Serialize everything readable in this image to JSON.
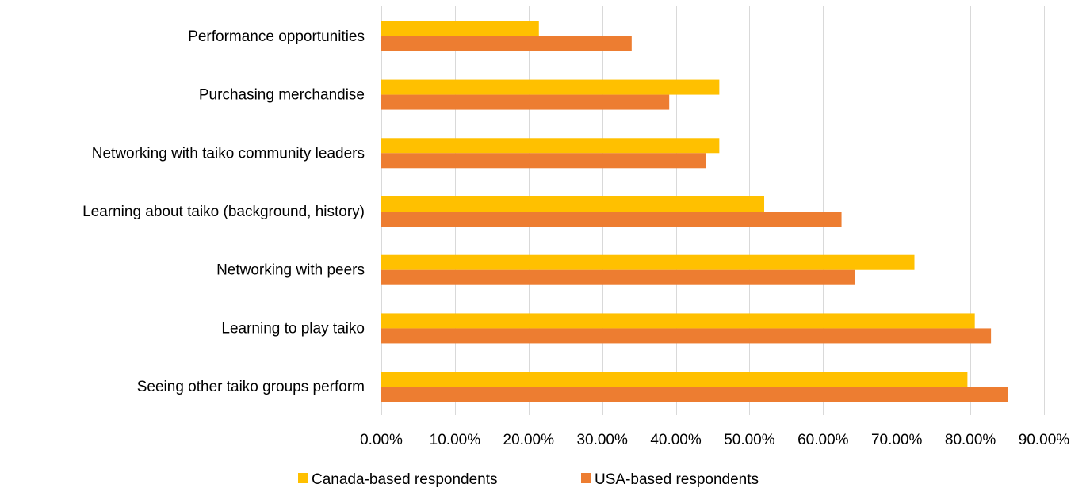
{
  "chart_data": {
    "type": "bar",
    "orientation": "horizontal",
    "categories": [
      "Performance opportunities",
      "Purchasing merchandise",
      "Networking with taiko community leaders",
      "Learning about taiko (background, history)",
      "Networking with peers",
      "Learning to play taiko",
      "Seeing other taiko groups perform"
    ],
    "series": [
      {
        "name": "Canada-based respondents",
        "color": "#FFC000",
        "values": [
          0.214,
          0.459,
          0.459,
          0.52,
          0.724,
          0.806,
          0.796
        ]
      },
      {
        "name": "USA-based respondents",
        "color": "#ED7D31",
        "values": [
          0.34,
          0.391,
          0.441,
          0.625,
          0.643,
          0.828,
          0.851
        ]
      }
    ],
    "xlim": [
      0,
      0.9
    ],
    "xticks": [
      "0.00%",
      "10.00%",
      "20.00%",
      "30.00%",
      "40.00%",
      "50.00%",
      "60.00%",
      "70.00%",
      "80.00%",
      "90.00%"
    ],
    "grid": true,
    "legend_position": "bottom",
    "title": "",
    "xlabel": "",
    "ylabel": ""
  }
}
